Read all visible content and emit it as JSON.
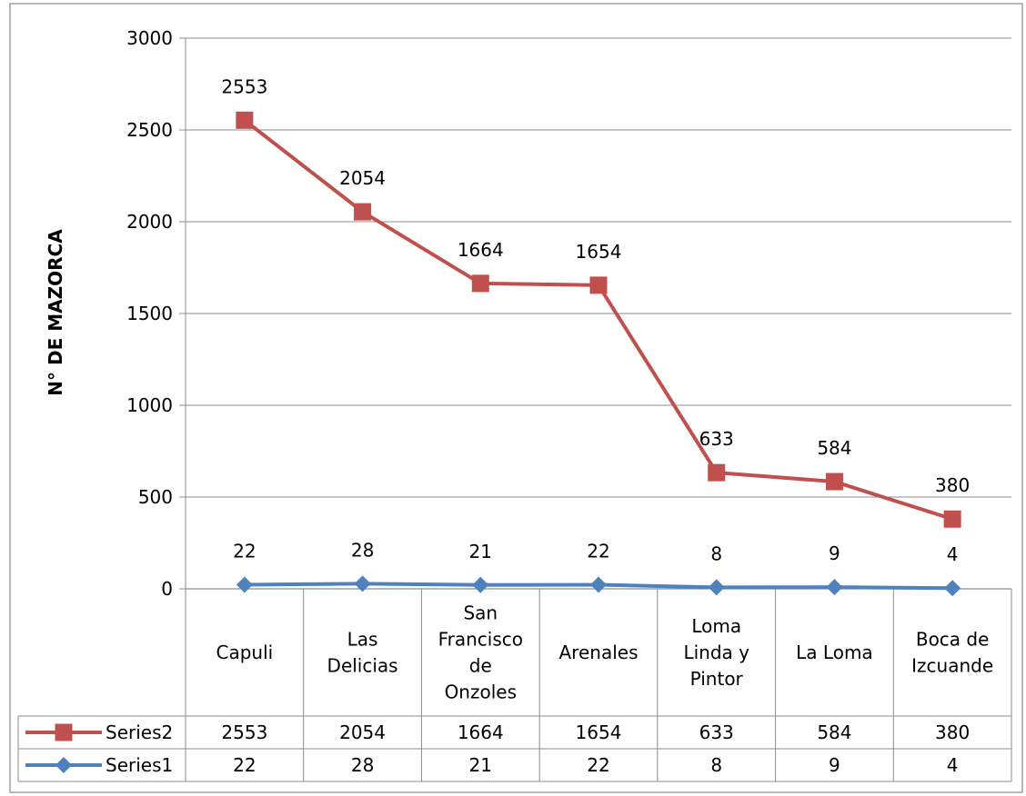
{
  "chart_data": {
    "type": "line",
    "title": "",
    "xlabel": "",
    "ylabel": "N° DE MAZORCA",
    "ylim": [
      0,
      3000
    ],
    "yticks": [
      0,
      500,
      1000,
      1500,
      2000,
      2500,
      3000
    ],
    "grid": true,
    "legend": "data-table",
    "categories": [
      [
        "Capuli"
      ],
      [
        "Las",
        "Delicias"
      ],
      [
        "San",
        "Francisco",
        "de",
        "Onzoles"
      ],
      [
        "Arenales"
      ],
      [
        "Loma",
        "Linda y",
        "Pintor"
      ],
      [
        "La Loma"
      ],
      [
        "Boca de",
        "Izcuande"
      ]
    ],
    "series": [
      {
        "name": "Series2",
        "values": [
          2553,
          2054,
          1664,
          1654,
          633,
          584,
          380
        ],
        "color": "#c0504d",
        "marker": "square"
      },
      {
        "name": "Series1",
        "values": [
          22,
          28,
          21,
          22,
          8,
          9,
          4
        ],
        "color": "#4f81bd",
        "marker": "diamond"
      }
    ]
  }
}
